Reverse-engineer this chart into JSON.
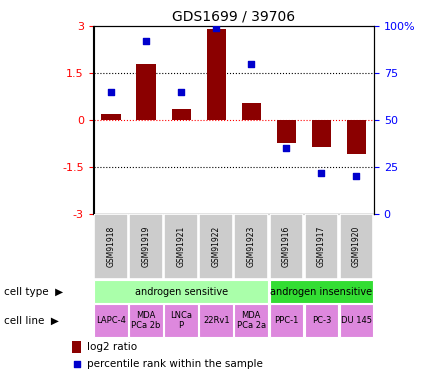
{
  "title": "GDS1699 / 39706",
  "samples": [
    "GSM91918",
    "GSM91919",
    "GSM91921",
    "GSM91922",
    "GSM91923",
    "GSM91916",
    "GSM91917",
    "GSM91920"
  ],
  "log2_ratio": [
    0.2,
    1.8,
    0.35,
    2.9,
    0.55,
    -0.75,
    -0.85,
    -1.1
  ],
  "percentile_rank": [
    65,
    92,
    65,
    99,
    80,
    35,
    22,
    20
  ],
  "cell_types": [
    {
      "label": "androgen sensitive",
      "start": 0,
      "end": 5,
      "color": "#aaffaa"
    },
    {
      "label": "androgen insensitive",
      "start": 5,
      "end": 8,
      "color": "#33dd33"
    }
  ],
  "cell_lines": [
    {
      "label": "LAPC-4",
      "start": 0,
      "end": 1
    },
    {
      "label": "MDA\nPCa 2b",
      "start": 1,
      "end": 2
    },
    {
      "label": "LNCa\nP",
      "start": 2,
      "end": 3
    },
    {
      "label": "22Rv1",
      "start": 3,
      "end": 4
    },
    {
      "label": "MDA\nPCa 2a",
      "start": 4,
      "end": 5
    },
    {
      "label": "PPC-1",
      "start": 5,
      "end": 6
    },
    {
      "label": "PC-3",
      "start": 6,
      "end": 7
    },
    {
      "label": "DU 145",
      "start": 7,
      "end": 8
    }
  ],
  "cell_line_color": "#dd88dd",
  "gsm_box_color": "#cccccc",
  "bar_color": "#8b0000",
  "dot_color": "#0000cc",
  "ylim": [
    -3,
    3
  ],
  "yticks_left": [
    -3,
    -1.5,
    0,
    1.5,
    3
  ],
  "yticks_right": [
    0,
    25,
    50,
    75,
    100
  ],
  "legend_bar_label": "log2 ratio",
  "legend_dot_label": "percentile rank within the sample",
  "left_label": "cell type",
  "left_label2": "cell line",
  "figwidth": 4.25,
  "figheight": 3.75,
  "dpi": 100
}
